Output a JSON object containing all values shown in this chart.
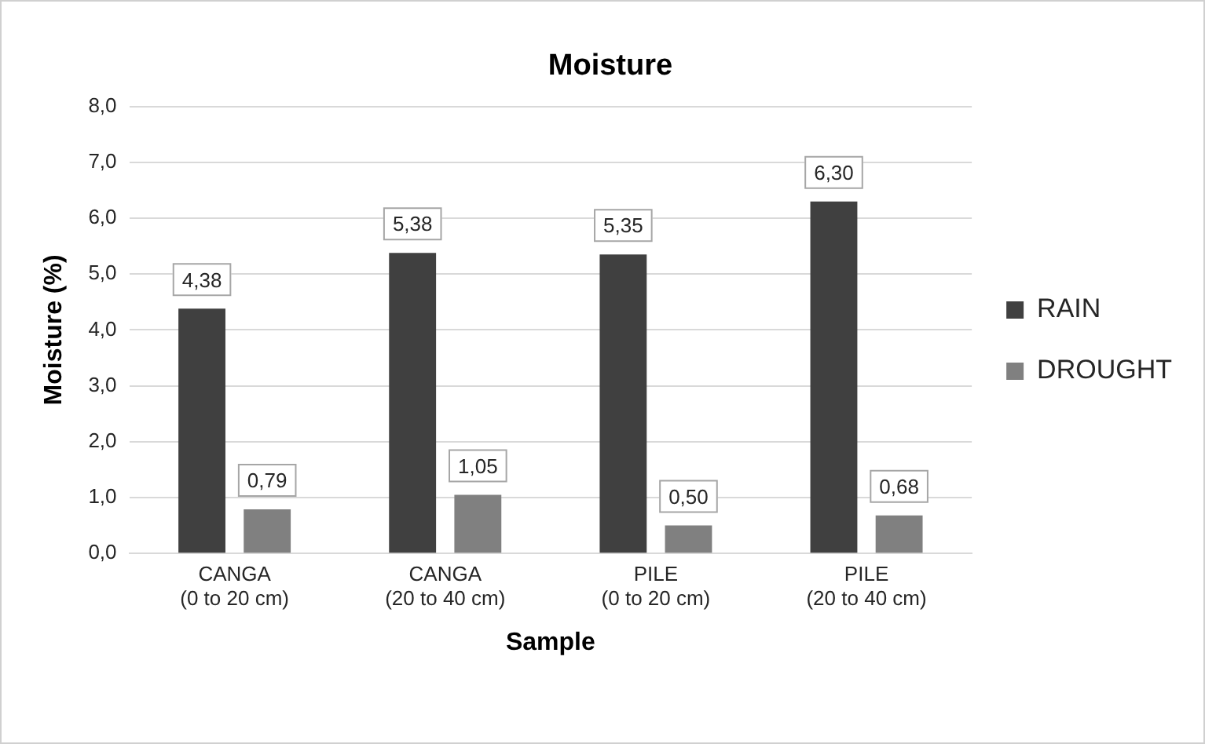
{
  "chart_data": {
    "type": "bar",
    "title": "Moisture",
    "xlabel": "Sample",
    "ylabel": "Moisture (%)",
    "categories": [
      "CANGA\n(0 to 20 cm)",
      "CANGA\n(20 to 40 cm)",
      "PILE\n(0 to 20 cm)",
      "PILE\n(20 to 40 cm)"
    ],
    "series": [
      {
        "name": "RAIN",
        "color": "#404040",
        "values": [
          4.38,
          5.38,
          5.35,
          6.3
        ],
        "value_labels": [
          "4,38",
          "5,38",
          "5,35",
          "6,30"
        ]
      },
      {
        "name": "DROUGHT",
        "color": "#808080",
        "values": [
          0.79,
          1.05,
          0.5,
          0.68
        ],
        "value_labels": [
          "0,79",
          "1,05",
          "0,50",
          "0,68"
        ]
      }
    ],
    "ylim": [
      0,
      8
    ],
    "yticks": [
      {
        "value": 0,
        "label": "0,0"
      },
      {
        "value": 1,
        "label": "1,0"
      },
      {
        "value": 2,
        "label": "2,0"
      },
      {
        "value": 3,
        "label": "3,0"
      },
      {
        "value": 4,
        "label": "4,0"
      },
      {
        "value": 5,
        "label": "5,0"
      },
      {
        "value": 6,
        "label": "6,0"
      },
      {
        "value": 7,
        "label": "7,0"
      },
      {
        "value": 8,
        "label": "8,0"
      }
    ],
    "grid": "y",
    "legend": "right"
  }
}
